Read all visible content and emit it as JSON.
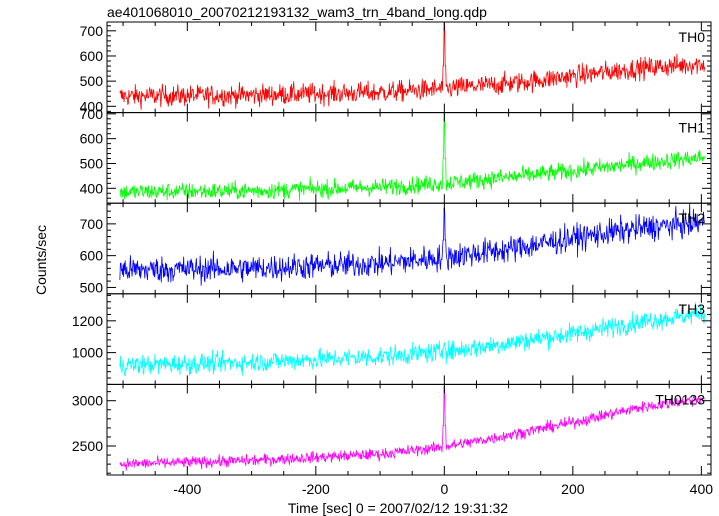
{
  "chart_data": {
    "type": "line",
    "title": "ae401068010_20070212193132_wam3_trn_4band_long.qdp",
    "xlabel": "Time [sec] 0 = 2007/02/12 19:31:32",
    "ylabel": "Counts/sec",
    "xlim": [
      -525,
      415
    ],
    "x_ticks": [
      -400,
      -200,
      0,
      200,
      400
    ],
    "x_data_range": [
      -505,
      405
    ],
    "panels": [
      {
        "name": "TH0",
        "color": "#ff0000",
        "ylim": [
          375,
          735
        ],
        "y_ticks": [
          400,
          500,
          600,
          700
        ],
        "trend": [
          [
            -505,
            440
          ],
          [
            -300,
            445
          ],
          [
            -100,
            455
          ],
          [
            0,
            470
          ],
          [
            100,
            490
          ],
          [
            200,
            520
          ],
          [
            300,
            550
          ],
          [
            405,
            570
          ]
        ],
        "noise": 30,
        "spike": {
          "x": 0,
          "peak": 730
        }
      },
      {
        "name": "TH1",
        "color": "#00ff00",
        "ylim": [
          340,
          705
        ],
        "y_ticks": [
          400,
          500,
          600,
          700
        ],
        "trend": [
          [
            -505,
            385
          ],
          [
            -300,
            390
          ],
          [
            -100,
            405
          ],
          [
            0,
            420
          ],
          [
            100,
            445
          ],
          [
            200,
            470
          ],
          [
            300,
            500
          ],
          [
            405,
            525
          ]
        ],
        "noise": 25,
        "spike": {
          "x": 0,
          "peak": 705
        }
      },
      {
        "name": "TH2",
        "color": "#0000ff",
        "ylim": [
          480,
          765
        ],
        "y_ticks": [
          500,
          600,
          700
        ],
        "trend": [
          [
            -505,
            555
          ],
          [
            -300,
            560
          ],
          [
            -100,
            575
          ],
          [
            0,
            595
          ],
          [
            100,
            620
          ],
          [
            200,
            655
          ],
          [
            300,
            685
          ],
          [
            405,
            705
          ]
        ],
        "noise": 30,
        "spike": {
          "x": 0,
          "peak": 750
        }
      },
      {
        "name": "TH3",
        "color": "#00ffff",
        "ylim": [
          800,
          1370
        ],
        "y_ticks": [
          1000,
          1200
        ],
        "trend": [
          [
            -505,
            920
          ],
          [
            -300,
            940
          ],
          [
            -100,
            975
          ],
          [
            0,
            1005
          ],
          [
            100,
            1060
          ],
          [
            200,
            1120
          ],
          [
            300,
            1190
          ],
          [
            405,
            1250
          ]
        ],
        "noise": 45,
        "spike": {
          "x": 0,
          "peak": 1060
        }
      },
      {
        "name": "TH0123",
        "color": "#ff00ff",
        "ylim": [
          2180,
          3180
        ],
        "y_ticks": [
          2500,
          3000
        ],
        "trend": [
          [
            -505,
            2300
          ],
          [
            -300,
            2340
          ],
          [
            -100,
            2410
          ],
          [
            0,
            2490
          ],
          [
            100,
            2620
          ],
          [
            200,
            2760
          ],
          [
            300,
            2920
          ],
          [
            405,
            3030
          ]
        ],
        "noise": 45,
        "spike": {
          "x": 0,
          "peak": 3160
        }
      }
    ]
  }
}
